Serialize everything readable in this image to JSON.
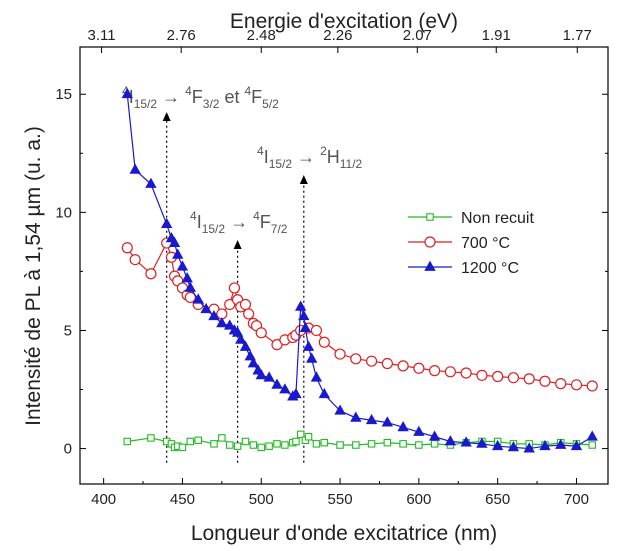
{
  "chart_data": {
    "type": "scatter",
    "title": "",
    "xlabel": "Longueur d'onde excitatrice (nm)",
    "ylabel": "Intensité de PL à 1,54 µm (u. a.)",
    "x2label": "Energie d'excitation (eV)",
    "xlim": [
      385,
      720
    ],
    "ylim": [
      -1.5,
      17
    ],
    "xticks": [
      400,
      450,
      500,
      550,
      600,
      650,
      700
    ],
    "yticks": [
      0,
      5,
      10,
      15
    ],
    "x2ticks": [
      {
        "label": "3.11",
        "wavelength": 398.7
      },
      {
        "label": "2.76",
        "wavelength": 449.2
      },
      {
        "label": "2.48",
        "wavelength": 500.0
      },
      {
        "label": "2.26",
        "wavelength": 548.6
      },
      {
        "label": "2.07",
        "wavelength": 599.0
      },
      {
        "label": "1.91",
        "wavelength": 649.1
      },
      {
        "label": "1.77",
        "wavelength": 700.5
      }
    ],
    "legend_position": "right-middle",
    "series": [
      {
        "name": "Non recuit",
        "color": "#22bb22",
        "marker": "square-open",
        "x": [
          415,
          430,
          440,
          443,
          445,
          447,
          450,
          455,
          460,
          470,
          475,
          480,
          485,
          490,
          495,
          500,
          505,
          510,
          515,
          520,
          522,
          525,
          528,
          530,
          535,
          540,
          550,
          560,
          570,
          580,
          590,
          600,
          610,
          620,
          630,
          640,
          650,
          660,
          670,
          680,
          690,
          700,
          710
        ],
        "y": [
          0.3,
          0.45,
          0.3,
          0.2,
          0.05,
          0.1,
          0.05,
          0.3,
          0.35,
          0.2,
          0.45,
          0.15,
          0.1,
          0.3,
          0.15,
          0.05,
          0.1,
          0.2,
          0.15,
          0.25,
          0.3,
          0.6,
          0.35,
          0.5,
          0.2,
          0.25,
          0.15,
          0.15,
          0.2,
          0.25,
          0.2,
          0.15,
          0.2,
          0.15,
          0.25,
          0.3,
          0.3,
          0.2,
          0.2,
          0.15,
          0.25,
          0.2,
          0.15
        ]
      },
      {
        "name": "700 °C",
        "color": "#dd2222",
        "marker": "circle-open",
        "x": [
          415,
          420,
          430,
          440,
          443,
          445,
          447,
          450,
          453,
          455,
          460,
          470,
          475,
          480,
          483,
          485,
          487,
          490,
          492,
          495,
          497,
          500,
          510,
          515,
          520,
          522,
          525,
          530,
          535,
          540,
          550,
          560,
          570,
          580,
          590,
          600,
          610,
          620,
          630,
          640,
          650,
          660,
          670,
          680,
          690,
          700,
          710
        ],
        "y": [
          8.5,
          8.0,
          7.4,
          8.7,
          8.1,
          7.3,
          7.1,
          6.8,
          6.5,
          6.4,
          6.1,
          5.9,
          5.7,
          6.1,
          6.8,
          6.3,
          6.0,
          6.1,
          5.7,
          5.3,
          5.2,
          4.9,
          4.4,
          4.6,
          4.7,
          4.8,
          5.0,
          5.1,
          5.0,
          4.5,
          4.0,
          3.8,
          3.7,
          3.6,
          3.5,
          3.4,
          3.3,
          3.25,
          3.2,
          3.1,
          3.05,
          3.0,
          2.95,
          2.85,
          2.75,
          2.7,
          2.65
        ]
      },
      {
        "name": "1200 °C",
        "color": "#1a1acc",
        "marker": "triangle-filled",
        "x": [
          415,
          420,
          430,
          440,
          443,
          445,
          447,
          450,
          453,
          455,
          460,
          465,
          470,
          475,
          480,
          483,
          485,
          487,
          490,
          493,
          495,
          498,
          500,
          505,
          510,
          515,
          520,
          522,
          525,
          527,
          528,
          530,
          532,
          535,
          540,
          550,
          560,
          570,
          580,
          590,
          600,
          610,
          620,
          630,
          640,
          650,
          660,
          670,
          680,
          690,
          700,
          710
        ],
        "y": [
          15.0,
          11.8,
          11.2,
          9.5,
          8.9,
          8.7,
          8.2,
          7.7,
          7.2,
          6.8,
          6.3,
          5.9,
          5.6,
          5.3,
          5.2,
          5.0,
          4.9,
          4.6,
          4.3,
          3.9,
          3.6,
          3.3,
          3.1,
          3.0,
          2.7,
          2.5,
          2.2,
          2.3,
          6.0,
          5.6,
          5.1,
          4.3,
          3.8,
          3.0,
          2.3,
          1.6,
          1.3,
          1.2,
          1.1,
          0.9,
          0.7,
          0.5,
          0.3,
          0.25,
          0.2,
          0.1,
          0.05,
          0.0,
          0.1,
          0.15,
          0.1,
          0.5
        ]
      }
    ],
    "annotations": [
      {
        "x": 440,
        "main": "4",
        "level": "I",
        "sub": "15/2",
        "arrow_to": "4",
        "target": "F",
        "tsub": "3/2",
        "extra": " et ",
        "main2": "4",
        "level2": "F",
        "sub2": "5/2"
      },
      {
        "x": 485,
        "main": "4",
        "level": "I",
        "sub": "15/2",
        "arrow_to": "4",
        "target": "F",
        "tsub": "7/2"
      },
      {
        "x": 527,
        "main": "4",
        "level": "I",
        "sub": "15/2",
        "arrow_to": "2",
        "target": "H",
        "tsub": "11/2"
      }
    ]
  }
}
